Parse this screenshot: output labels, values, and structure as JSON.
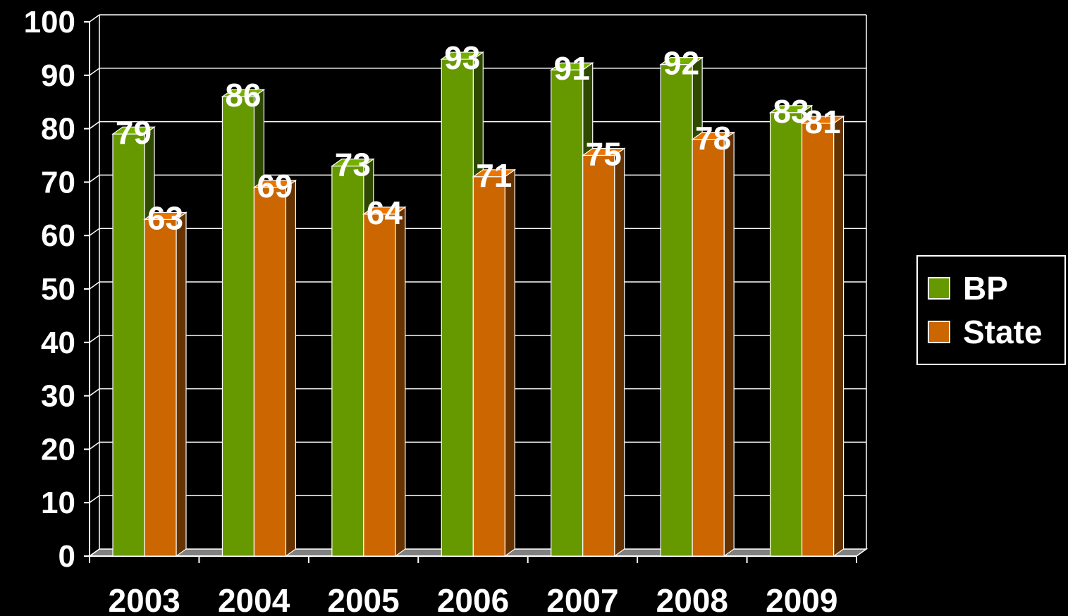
{
  "chart_data": {
    "type": "bar",
    "title": "",
    "xlabel": "",
    "ylabel": "",
    "categories": [
      "2003",
      "2004",
      "2005",
      "2006",
      "2007",
      "2008",
      "2009"
    ],
    "series": [
      {
        "name": "BP",
        "values": [
          79,
          86,
          73,
          93,
          91,
          92,
          83
        ],
        "color": "#669900",
        "side_color": "#2f4a00"
      },
      {
        "name": "State",
        "values": [
          63,
          69,
          64,
          71,
          75,
          78,
          81
        ],
        "color": "#cc6600",
        "side_color": "#663300"
      }
    ],
    "ylim": [
      0,
      100
    ],
    "yticks": [
      0,
      10,
      20,
      30,
      40,
      50,
      60,
      70,
      80,
      90,
      100
    ],
    "grid": true,
    "legend_position": "right",
    "style": "3d-clustered-column",
    "colors": {
      "background": "#000000",
      "text": "#ffffff",
      "gridline": "#ffffff",
      "floor": "#808080"
    }
  }
}
